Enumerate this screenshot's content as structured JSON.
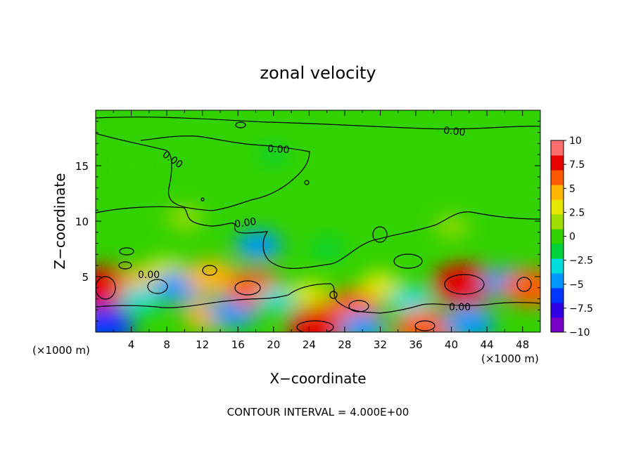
{
  "chart_data": {
    "type": "heatmap",
    "title": "zonal velocity",
    "xlabel": "X−coordinate",
    "ylabel": "Z−coordinate",
    "x_ticks": [
      4,
      8,
      12,
      16,
      20,
      24,
      28,
      32,
      36,
      40,
      44,
      48
    ],
    "y_ticks": [
      5,
      10,
      15
    ],
    "xlim": [
      0,
      50
    ],
    "ylim": [
      0,
      20
    ],
    "x_unit": "(×1000 m)",
    "y_unit": "(×1000 m)",
    "contour_label": "0.00",
    "contour_interval_text": "CONTOUR INTERVAL = 4.000E+00",
    "colorbar": {
      "ticks": [
        {
          "value": 10,
          "label": "10"
        },
        {
          "value": 7.5,
          "label": "7.5"
        },
        {
          "value": 5,
          "label": "5"
        },
        {
          "value": 2.5,
          "label": "2.5"
        },
        {
          "value": 0,
          "label": "0"
        },
        {
          "value": -2.5,
          "label": "−2.5"
        },
        {
          "value": -5,
          "label": "−5"
        },
        {
          "value": -7.5,
          "label": "−7.5"
        },
        {
          "value": -10,
          "label": "−10"
        }
      ],
      "range": [
        -10,
        10
      ],
      "colors": [
        "#7a00c8",
        "#3200e6",
        "#0034ff",
        "#0096ff",
        "#00dcdc",
        "#00d23c",
        "#32d200",
        "#a0dc00",
        "#e6e600",
        "#ffb400",
        "#ff5a00",
        "#e60000",
        "#ff6e6e"
      ]
    },
    "features": [
      {
        "x": 1.0,
        "z": 4.0,
        "value": 7.5
      },
      {
        "x": 5.5,
        "z": 4.6,
        "value": 4.0
      },
      {
        "x": 5.0,
        "z": 3.0,
        "value": -3.0
      },
      {
        "x": 8.0,
        "z": 5.5,
        "value": 3.0
      },
      {
        "x": 9.5,
        "z": 4.1,
        "value": -5.0
      },
      {
        "x": 12.5,
        "z": 1.5,
        "value": 4.0
      },
      {
        "x": 13.0,
        "z": 5.0,
        "value": 5.0
      },
      {
        "x": 15.5,
        "z": 1.8,
        "value": -4.5
      },
      {
        "x": 18.0,
        "z": 3.9,
        "value": 6.0
      },
      {
        "x": 18.3,
        "z": 7.8,
        "value": -4.0
      },
      {
        "x": 20.5,
        "z": 3.0,
        "value": -3.0
      },
      {
        "x": 25.0,
        "z": 0.5,
        "value": 7.0
      },
      {
        "x": 24.0,
        "z": 3.5,
        "value": 2.5
      },
      {
        "x": 29.0,
        "z": 2.3,
        "value": 5.5
      },
      {
        "x": 30.0,
        "z": 0.4,
        "value": -4.0
      },
      {
        "x": 32.0,
        "z": 4.2,
        "value": 3.0
      },
      {
        "x": 35.5,
        "z": 2.8,
        "value": -3.5
      },
      {
        "x": 37.0,
        "z": 0.3,
        "value": 6.5
      },
      {
        "x": 41.5,
        "z": 4.3,
        "value": 7.5
      },
      {
        "x": 42.0,
        "z": 0.8,
        "value": -5.0
      },
      {
        "x": 46.0,
        "z": 4.5,
        "value": -4.0
      },
      {
        "x": 49.0,
        "z": 4.0,
        "value": 6.0
      },
      {
        "x": 1.0,
        "z": 0.6,
        "value": -6.5
      },
      {
        "x": 26.0,
        "z": 7.5,
        "value": -1.5
      },
      {
        "x": 40.0,
        "z": 9.5,
        "value": 1.5
      },
      {
        "x": 10.0,
        "z": 10.3,
        "value": 2.0
      },
      {
        "x": 20.0,
        "z": 16.0,
        "value": -0.8
      },
      {
        "x": 4.0,
        "z": 15.0,
        "value": 0.5
      }
    ]
  }
}
